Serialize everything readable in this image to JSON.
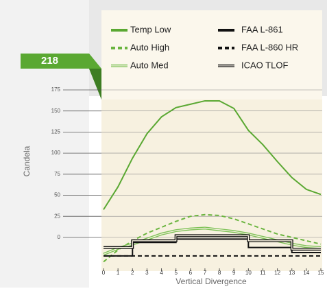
{
  "chart_data": {
    "type": "line",
    "badge": "218",
    "ylabel": "Candela",
    "xlabel": "Vertical Divergence",
    "xlim": [
      0,
      15
    ],
    "xticks": [
      0,
      1,
      2,
      3,
      4,
      5,
      6,
      7,
      8,
      9,
      10,
      11,
      12,
      13,
      14,
      15
    ],
    "ylim": [
      -40,
      175
    ],
    "yticks": [
      0,
      25,
      50,
      75,
      100,
      125,
      150,
      175
    ],
    "grid": true,
    "series": [
      {
        "name": "Temp Low",
        "color": "#5aa832",
        "style": "solid",
        "x": [
          0,
          1,
          2,
          3,
          4,
          5,
          6,
          7,
          8,
          9,
          10,
          11,
          12,
          13,
          14,
          15
        ],
        "values": [
          33,
          60,
          94,
          123,
          143,
          154,
          158,
          162,
          162,
          153,
          127,
          110,
          90,
          71,
          57,
          51
        ]
      },
      {
        "name": "Auto High",
        "color": "#6ab43e",
        "style": "dashed",
        "x": [
          0,
          1,
          2,
          3,
          4,
          5,
          6,
          7,
          8,
          9,
          10,
          11,
          12,
          13,
          14,
          15
        ],
        "values": [
          -29,
          -15,
          -4,
          5,
          12,
          19,
          25,
          27,
          26,
          22,
          16,
          10,
          4,
          0,
          -4,
          -8
        ]
      },
      {
        "name": "Auto Med",
        "color": "#7cc155",
        "style": "double",
        "x": [
          0,
          1,
          2,
          3,
          4,
          5,
          6,
          7,
          8,
          9,
          10,
          11,
          12,
          13,
          14,
          15
        ],
        "values": [
          -20,
          -13,
          -8,
          -2,
          4,
          8,
          10,
          11,
          9,
          7,
          4,
          0,
          -4,
          -8,
          -11,
          -12
        ]
      },
      {
        "name": "FAA L-861",
        "color": "#111111",
        "style": "solid",
        "x": [
          0,
          2,
          2,
          5,
          5,
          10,
          10,
          13,
          13,
          15
        ],
        "values": [
          -22,
          -22,
          -6,
          -6,
          -2,
          -2,
          -12,
          -12,
          -18,
          -18
        ]
      },
      {
        "name": "FAA L-860 HR",
        "color": "#111111",
        "style": "dashed",
        "x": [
          0,
          15
        ],
        "values": [
          -22,
          -22
        ]
      },
      {
        "name": "ICAO TLOF",
        "color": "#111111",
        "style": "double",
        "x": [
          0,
          2,
          2,
          5,
          5,
          10,
          10,
          13,
          13,
          15
        ],
        "values": [
          -12,
          -12,
          -4,
          -4,
          2,
          2,
          -4,
          -4,
          -14,
          -14
        ]
      }
    ]
  }
}
